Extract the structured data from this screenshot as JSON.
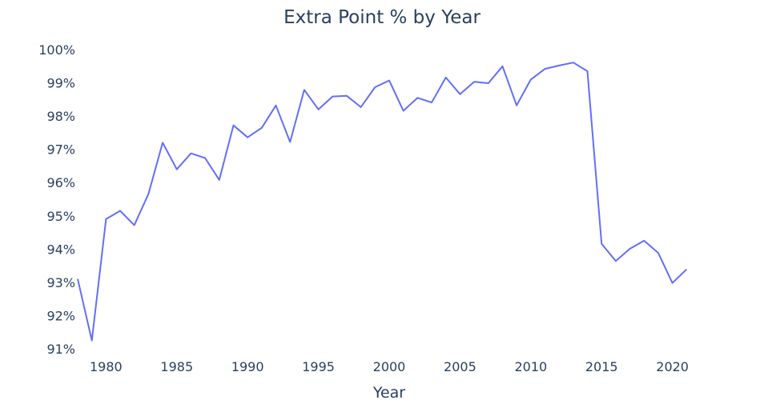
{
  "chart_data": {
    "type": "line",
    "title": "Extra Point % by Year",
    "xlabel": "Year",
    "ylabel": "",
    "xlim": [
      1978,
      2022
    ],
    "ylim": [
      91,
      100
    ],
    "x_ticks": [
      "1980",
      "1985",
      "1990",
      "1995",
      "2000",
      "2005",
      "2010",
      "2015",
      "2020"
    ],
    "y_ticks": [
      "91%",
      "92%",
      "93%",
      "94%",
      "95%",
      "96%",
      "97%",
      "98%",
      "99%",
      "100%"
    ],
    "grid": false,
    "legend": false,
    "line_color": "#636efa",
    "x": [
      1978,
      1979,
      1980,
      1981,
      1982,
      1983,
      1984,
      1985,
      1986,
      1987,
      1988,
      1989,
      1990,
      1991,
      1992,
      1993,
      1994,
      1995,
      1996,
      1997,
      1998,
      1999,
      2000,
      2001,
      2002,
      2003,
      2004,
      2005,
      2006,
      2007,
      2008,
      2009,
      2010,
      2011,
      2012,
      2013,
      2014,
      2015,
      2016,
      2017,
      2018,
      2019,
      2020,
      2021
    ],
    "y": [
      93.1,
      91.25,
      94.9,
      95.15,
      94.72,
      95.66,
      97.2,
      96.4,
      96.88,
      96.74,
      96.08,
      97.72,
      97.36,
      97.65,
      98.32,
      97.22,
      98.79,
      98.2,
      98.59,
      98.61,
      98.27,
      98.87,
      99.07,
      98.16,
      98.55,
      98.41,
      99.16,
      98.66,
      99.03,
      98.99,
      99.5,
      98.32,
      99.1,
      99.42,
      99.52,
      99.61,
      99.35,
      94.16,
      93.64,
      94.01,
      94.25,
      93.88,
      92.98,
      93.39
    ]
  }
}
